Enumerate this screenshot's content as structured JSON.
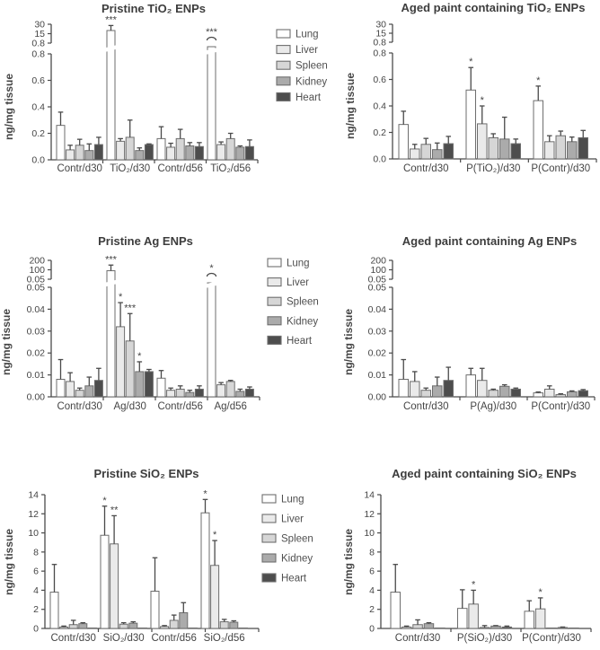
{
  "figure": {
    "type": "grouped-bar-figure",
    "units": "ng/mg tissue",
    "significance_markers": [
      "*",
      "**",
      "***"
    ]
  },
  "legend": {
    "entries": [
      {
        "label": "Lung",
        "color": "#ffffff"
      },
      {
        "label": "Liver",
        "color": "#eaeaea"
      },
      {
        "label": "Spleen",
        "color": "#d6d6d6"
      },
      {
        "label": "Kidney",
        "color": "#ababab"
      },
      {
        "label": "Heart",
        "color": "#4d4d4d"
      }
    ],
    "swatch_border_color": "#6e6e6e"
  },
  "colors": {
    "axis": "#4a4a4a",
    "bar_border": "#6e6e6e",
    "error_bar": "#5d5d5d",
    "text": "#454545"
  },
  "chart_data": [
    {
      "id": "pristine-tio2",
      "type": "bar",
      "title": "Pristine TiO₂ ENPs",
      "ylabel": "ng/mg tissue",
      "ylim": [
        0,
        0.8
      ],
      "yticks": [
        "0.8",
        "0.6",
        "0.4",
        "0.2",
        "0.0"
      ],
      "upper_axis": {
        "ticks": [
          "30",
          "15",
          "0.8"
        ],
        "values": [
          30,
          15,
          0.8
        ]
      },
      "series": [
        "Lung",
        "Liver",
        "Spleen",
        "Kidney",
        "Heart"
      ],
      "groups": [
        {
          "label": "Contr/d30",
          "bars": [
            {
              "v": 0.26,
              "e": 0.1
            },
            {
              "v": 0.075,
              "e": 0.035
            },
            {
              "v": 0.11,
              "e": 0.045
            },
            {
              "v": 0.07,
              "e": 0.05
            },
            {
              "v": 0.115,
              "e": 0.055
            }
          ]
        },
        {
          "label": "TiO₂/d30",
          "bars": [
            {
              "off": "break",
              "v": 20,
              "e": 8,
              "sig": "***"
            },
            {
              "v": 0.14,
              "e": 0.02
            },
            {
              "v": 0.17,
              "e": 0.13
            },
            {
              "v": 0.07,
              "e": 0.02
            },
            {
              "v": 0.115,
              "e": 0.005
            }
          ]
        },
        {
          "label": "Contr/d56",
          "bars": [
            {
              "v": 0.16,
              "e": 0.09
            },
            {
              "v": 0.095,
              "e": 0.03
            },
            {
              "v": 0.16,
              "e": 0.07
            },
            {
              "v": 0.105,
              "e": 0.025
            },
            {
              "v": 0.1,
              "e": 0.03
            }
          ]
        },
        {
          "label": "TiO₂/d56",
          "bars": [
            {
              "off": "arc",
              "sig": "***"
            },
            {
              "v": 0.115,
              "e": 0.02
            },
            {
              "v": 0.16,
              "e": 0.04
            },
            {
              "v": 0.095,
              "e": 0.01
            },
            {
              "v": 0.1,
              "e": 0.05
            }
          ]
        }
      ]
    },
    {
      "id": "aged-paint-tio2",
      "type": "bar",
      "title": "Aged paint containing TiO₂ ENPs",
      "ylabel": "ng/mg tissue",
      "ylim": [
        0,
        0.8
      ],
      "yticks": [
        "0.8",
        "0.6",
        "0.4",
        "0.2",
        "0.0"
      ],
      "upper_axis": {
        "ticks": [
          "30",
          "15",
          "0.8"
        ],
        "values": [
          30,
          15,
          0.8
        ]
      },
      "series": [
        "Lung",
        "Liver",
        "Spleen",
        "Kidney",
        "Heart"
      ],
      "groups": [
        {
          "label": "Contr/d30",
          "bars": [
            {
              "v": 0.26,
              "e": 0.1
            },
            {
              "v": 0.075,
              "e": 0.035
            },
            {
              "v": 0.11,
              "e": 0.045
            },
            {
              "v": 0.07,
              "e": 0.05
            },
            {
              "v": 0.115,
              "e": 0.055
            }
          ]
        },
        {
          "label": "P(TiO₂)/d30",
          "bars": [
            {
              "v": 0.52,
              "e": 0.17,
              "sig": "*"
            },
            {
              "v": 0.265,
              "e": 0.135,
              "sig": "*"
            },
            {
              "v": 0.16,
              "e": 0.03
            },
            {
              "v": 0.15,
              "e": 0.165
            },
            {
              "v": 0.115,
              "e": 0.035
            }
          ]
        },
        {
          "label": "P(Contr)/d30",
          "bars": [
            {
              "v": 0.44,
              "e": 0.11,
              "sig": "*"
            },
            {
              "v": 0.13,
              "e": 0.045
            },
            {
              "v": 0.175,
              "e": 0.035
            },
            {
              "v": 0.13,
              "e": 0.035
            },
            {
              "v": 0.16,
              "e": 0.055
            }
          ]
        }
      ]
    },
    {
      "id": "pristine-ag",
      "type": "bar",
      "title": "Pristine Ag ENPs",
      "ylabel": "ng/mg tissue",
      "ylim": [
        0,
        0.05
      ],
      "yticks": [
        "0.05",
        "0.04",
        "0.03",
        "0.02",
        "0.01",
        "0.00"
      ],
      "upper_axis": {
        "ticks": [
          "200",
          "100",
          "0.05"
        ],
        "values": [
          200,
          100,
          0.05
        ]
      },
      "series": [
        "Lung",
        "Liver",
        "Spleen",
        "Kidney",
        "Heart"
      ],
      "groups": [
        {
          "label": "Contr/d30",
          "bars": [
            {
              "v": 0.008,
              "e": 0.009
            },
            {
              "v": 0.007,
              "e": 0.004
            },
            {
              "v": 0.003,
              "e": 0.001
            },
            {
              "v": 0.005,
              "e": 0.004
            },
            {
              "v": 0.0075,
              "e": 0.0055
            }
          ]
        },
        {
          "label": "Ag/d30",
          "bars": [
            {
              "off": "break",
              "v": 90,
              "e": 60,
              "sig": "***"
            },
            {
              "v": 0.032,
              "e": 0.011,
              "sig": "*"
            },
            {
              "v": 0.0255,
              "e": 0.0125,
              "sig": "***"
            },
            {
              "v": 0.0115,
              "e": 0.0045,
              "sig": "*"
            },
            {
              "v": 0.0115,
              "e": 0.001
            }
          ]
        },
        {
          "label": "Contr/d56",
          "bars": [
            {
              "v": 0.0085,
              "e": 0.0035
            },
            {
              "v": 0.003,
              "e": 0.001
            },
            {
              "v": 0.0035,
              "e": 0.0015
            },
            {
              "v": 0.002,
              "e": 0.001
            },
            {
              "v": 0.0035,
              "e": 0.0015
            }
          ]
        },
        {
          "label": "Ag/d56",
          "bars": [
            {
              "off": "arc",
              "sig": "*"
            },
            {
              "v": 0.0055,
              "e": 0.001
            },
            {
              "v": 0.007,
              "e": 0.0005
            },
            {
              "v": 0.0025,
              "e": 0.001
            },
            {
              "v": 0.0035,
              "e": 0.001
            }
          ]
        }
      ]
    },
    {
      "id": "aged-paint-ag",
      "type": "bar",
      "title": "Aged paint containing Ag ENPs",
      "ylabel": "ng/mg tissue",
      "ylim": [
        0,
        0.05
      ],
      "yticks": [
        "0.05",
        "0.04",
        "0.03",
        "0.02",
        "0.01",
        "0.00"
      ],
      "upper_axis": {
        "ticks": [
          "200",
          "100",
          "0.05"
        ],
        "values": [
          200,
          100,
          0.05
        ]
      },
      "series": [
        "Lung",
        "Liver",
        "Spleen",
        "Kidney",
        "Heart"
      ],
      "groups": [
        {
          "label": "Contr/d30",
          "bars": [
            {
              "v": 0.008,
              "e": 0.009
            },
            {
              "v": 0.007,
              "e": 0.0045
            },
            {
              "v": 0.003,
              "e": 0.001
            },
            {
              "v": 0.005,
              "e": 0.004
            },
            {
              "v": 0.0075,
              "e": 0.006
            }
          ]
        },
        {
          "label": "P(Ag)/d30",
          "bars": [
            {
              "v": 0.01,
              "e": 0.003
            },
            {
              "v": 0.0075,
              "e": 0.0055
            },
            {
              "v": 0.003,
              "e": 0.0005
            },
            {
              "v": 0.0048,
              "e": 0.0007
            },
            {
              "v": 0.0035,
              "e": 0.0005
            }
          ]
        },
        {
          "label": "P(Contr)/d30",
          "bars": [
            {
              "v": 0.0018,
              "e": 0.0004
            },
            {
              "v": 0.0035,
              "e": 0.0015
            },
            {
              "v": 0.001,
              "e": 0.0004
            },
            {
              "v": 0.0023,
              "e": 0.0004
            },
            {
              "v": 0.0028,
              "e": 0.0005
            }
          ]
        }
      ]
    },
    {
      "id": "pristine-sio2",
      "type": "bar",
      "title": "Pristine SiO₂ ENPs",
      "ylabel": "ng/mg tissue",
      "ylim": [
        0,
        14
      ],
      "yticks": [
        "14",
        "12",
        "10",
        "8",
        "6",
        "4",
        "2",
        "0"
      ],
      "upper_axis": null,
      "series": [
        "Lung",
        "Liver",
        "Spleen",
        "Kidney",
        "Heart"
      ],
      "groups": [
        {
          "label": "Contr/d30",
          "bars": [
            {
              "v": 3.8,
              "e": 2.9
            },
            {
              "v": 0.15,
              "e": 0.1
            },
            {
              "v": 0.4,
              "e": 0.45
            },
            {
              "v": 0.5,
              "e": 0.1
            },
            {
              "v": 0.05,
              "e": 0
            }
          ]
        },
        {
          "label": "SiO₂/d30",
          "bars": [
            {
              "v": 9.75,
              "e": 3.05,
              "sig": "*"
            },
            {
              "v": 8.85,
              "e": 2.95,
              "sig": "**"
            },
            {
              "v": 0.45,
              "e": 0.15
            },
            {
              "v": 0.55,
              "e": 0.15
            },
            {
              "v": 0.05,
              "e": 0
            }
          ]
        },
        {
          "label": "Contr/d56",
          "bars": [
            {
              "v": 3.9,
              "e": 3.5
            },
            {
              "v": 0.2,
              "e": 0.1
            },
            {
              "v": 0.85,
              "e": 0.55
            },
            {
              "v": 1.65,
              "e": 1.05
            },
            {
              "v": 0.05,
              "e": 0
            }
          ]
        },
        {
          "label": "SiO₂/d56",
          "bars": [
            {
              "v": 12.1,
              "e": 1.4,
              "sig": "*"
            },
            {
              "v": 6.6,
              "e": 2.6,
              "sig": "*"
            },
            {
              "v": 0.7,
              "e": 0.25
            },
            {
              "v": 0.65,
              "e": 0.15
            },
            {
              "v": 0.05,
              "e": 0
            }
          ]
        }
      ]
    },
    {
      "id": "aged-paint-sio2",
      "type": "bar",
      "title": "Aged paint containing SiO₂ ENPs",
      "ylabel": "ng/mg tissue",
      "ylim": [
        0,
        14
      ],
      "yticks": [
        "14",
        "12",
        "10",
        "8",
        "6",
        "4",
        "2",
        "0"
      ],
      "upper_axis": null,
      "series": [
        "Lung",
        "Liver",
        "Spleen",
        "Kidney",
        "Heart"
      ],
      "groups": [
        {
          "label": "Contr/d30",
          "bars": [
            {
              "v": 3.8,
              "e": 2.9
            },
            {
              "v": 0.15,
              "e": 0.1
            },
            {
              "v": 0.4,
              "e": 0.5
            },
            {
              "v": 0.5,
              "e": 0.1
            },
            {
              "v": 0.05,
              "e": 0
            }
          ]
        },
        {
          "label": "P(SiO₂)/d30",
          "bars": [
            {
              "v": 2.1,
              "e": 1.95
            },
            {
              "v": 2.55,
              "e": 1.45,
              "sig": "*"
            },
            {
              "v": 0.1,
              "e": 0.2
            },
            {
              "v": 0.25,
              "e": 0.05
            },
            {
              "v": 0.15,
              "e": 0.1
            }
          ]
        },
        {
          "label": "P(Contr)/d30",
          "bars": [
            {
              "v": 1.8,
              "e": 1.1
            },
            {
              "v": 2.05,
              "e": 1.15,
              "sig": "*"
            },
            {
              "v": 0.05,
              "e": 0
            },
            {
              "v": 0.1,
              "e": 0.05
            },
            {
              "v": 0.05,
              "e": 0
            }
          ]
        }
      ]
    }
  ]
}
